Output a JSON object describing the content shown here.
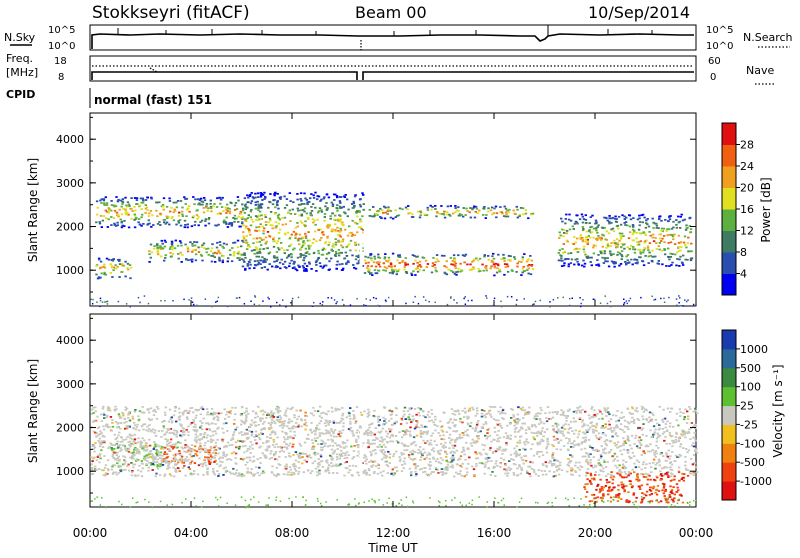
{
  "header": {
    "station": "Stokkseyri (fitACF)",
    "beam": "Beam 00",
    "date": "10/Sep/2014"
  },
  "panels": {
    "nsky": {
      "left_label": "N.Sky",
      "left_top_tick": "10^5",
      "left_bottom_tick": "10^0",
      "right_label": "N.Search",
      "right_top_tick": "10^5",
      "right_bottom_tick": "10^0"
    },
    "freq": {
      "left_label_1": "Freq.",
      "left_label_2": "[MHz]",
      "left_top_tick": "18",
      "left_bottom_tick": "8",
      "right_label": "Nave",
      "right_top_tick": "60",
      "right_bottom_tick": "0"
    },
    "cpid": {
      "label": "CPID",
      "value": "normal (fast) 151"
    }
  },
  "chart_data": [
    {
      "type": "heatmap",
      "quantity": "power",
      "ylabel": "Slant Range [km]",
      "yticks": [
        "1000",
        "2000",
        "3000",
        "4000"
      ],
      "ylim": [
        180,
        4600
      ],
      "xlim_hours": [
        0,
        24
      ],
      "colorbar": {
        "label": "Power [dB]",
        "ticks": [
          "4",
          "8",
          "12",
          "16",
          "20",
          "24",
          "28"
        ],
        "colors": [
          "#0000f0",
          "#2a4eb0",
          "#3f7a62",
          "#5cb040",
          "#e0e020",
          "#f0a020",
          "#f06010",
          "#e01010"
        ]
      },
      "echo_bands": [
        {
          "t0": 0.2,
          "t1": 1.6,
          "r": [
            800,
            1300
          ],
          "power_db": "8-16"
        },
        {
          "t0": 2.3,
          "t1": 6.0,
          "r": [
            1200,
            1700
          ],
          "power_db": "8-20"
        },
        {
          "t0": 6.0,
          "t1": 10.8,
          "r": [
            1000,
            2800
          ],
          "power_db": "12-24",
          "note": "descending echo"
        },
        {
          "t0": 10.8,
          "t1": 17.5,
          "r": [
            900,
            1400
          ],
          "power_db": "20-30"
        },
        {
          "t0": 18.5,
          "t1": 23.8,
          "r": [
            1100,
            2300
          ],
          "power_db": "4-16"
        },
        {
          "t0": 0.2,
          "t1": 6.0,
          "r": [
            2000,
            2700
          ],
          "power_db": "4-12"
        },
        {
          "t0": 11.0,
          "t1": 17.5,
          "r": [
            2200,
            2500
          ],
          "power_db": "4-8"
        }
      ]
    },
    {
      "type": "heatmap",
      "quantity": "velocity",
      "ylabel": "Slant Range [km]",
      "yticks": [
        "1000",
        "2000",
        "3000",
        "4000"
      ],
      "ylim": [
        180,
        4600
      ],
      "xlim_hours": [
        0,
        24
      ],
      "xlabel": "Time UT",
      "xticks": [
        "00:00",
        "04:00",
        "08:00",
        "12:00",
        "16:00",
        "20:00",
        "00:00"
      ],
      "colorbar": {
        "label": "Velocity [m s⁻¹]",
        "ticks": [
          "1000",
          "500",
          "100",
          "25",
          "-25",
          "-100",
          "-500",
          "-1000"
        ],
        "colors": [
          "#1a3ab0",
          "#2a6a9a",
          "#3a8a40",
          "#5cc030",
          "#c8c8c0",
          "#f0c020",
          "#f08010",
          "#f04010",
          "#e01010"
        ]
      },
      "echo_bands": [
        {
          "t0": 0.8,
          "t1": 2.8,
          "r": [
            1100,
            1700
          ],
          "velocity": "100 to 500"
        },
        {
          "t0": 2.8,
          "t1": 5.0,
          "r": [
            1200,
            1600
          ],
          "velocity": "-500 to -100"
        },
        {
          "t0": 0.0,
          "t1": 24.0,
          "r": [
            900,
            2500
          ],
          "velocity": "-25 to 25"
        },
        {
          "t0": 19.5,
          "t1": 23.5,
          "r": [
            300,
            1000
          ],
          "velocity": "-1000 to -100"
        }
      ]
    }
  ]
}
